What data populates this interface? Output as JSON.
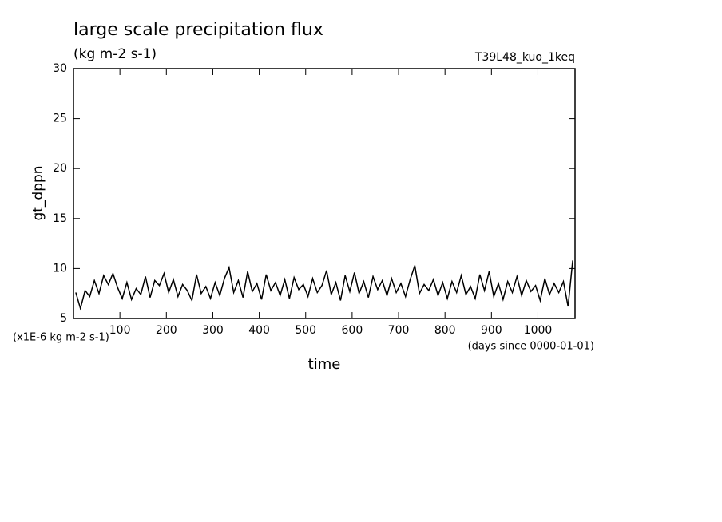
{
  "chart_data": {
    "type": "line",
    "title": "large scale precipitation flux",
    "subtitle": "(kg m-2 s-1)",
    "annotation_right": "T39L48_kuo_1keq",
    "y_label": "gt_dppn",
    "x_label": "time",
    "y_scale_note": "(x1E-6 kg m-2 s-1)",
    "x_unit_note": "(days since 0000-01-01)",
    "xlim": [
      0,
      1080
    ],
    "ylim": [
      5,
      30
    ],
    "xticks": [
      100,
      200,
      300,
      400,
      500,
      600,
      700,
      800,
      900,
      1000
    ],
    "yticks": [
      5,
      10,
      15,
      20,
      25,
      30
    ],
    "x": [
      5,
      15,
      25,
      35,
      45,
      55,
      65,
      75,
      85,
      95,
      105,
      115,
      125,
      135,
      145,
      155,
      165,
      175,
      185,
      195,
      205,
      215,
      225,
      235,
      245,
      255,
      265,
      275,
      285,
      295,
      305,
      315,
      325,
      335,
      345,
      355,
      365,
      375,
      385,
      395,
      405,
      415,
      425,
      435,
      445,
      455,
      465,
      475,
      485,
      495,
      505,
      515,
      525,
      535,
      545,
      555,
      565,
      575,
      585,
      595,
      605,
      615,
      625,
      635,
      645,
      655,
      665,
      675,
      685,
      695,
      705,
      715,
      725,
      735,
      745,
      755,
      765,
      775,
      785,
      795,
      805,
      815,
      825,
      835,
      845,
      855,
      865,
      875,
      885,
      895,
      905,
      915,
      925,
      935,
      945,
      955,
      965,
      975,
      985,
      995,
      1005,
      1015,
      1025,
      1035,
      1045,
      1055,
      1065,
      1075
    ],
    "series": [
      {
        "color": "#000000",
        "values": [
          7.6,
          6.0,
          7.8,
          7.2,
          8.8,
          7.5,
          9.3,
          8.4,
          9.5,
          8.1,
          7.0,
          8.6,
          6.9,
          8.0,
          7.4,
          9.2,
          7.1,
          8.8,
          8.3,
          9.5,
          7.6,
          8.9,
          7.2,
          8.4,
          7.8,
          6.8,
          9.4,
          7.5,
          8.2,
          7.0,
          8.6,
          7.3,
          9.0,
          10.1,
          7.6,
          8.8,
          7.1,
          9.7,
          7.7,
          8.5,
          6.9,
          9.4,
          7.8,
          8.6,
          7.3,
          8.9,
          7.0,
          9.1,
          7.9,
          8.4,
          7.2,
          9.0,
          7.6,
          8.3,
          9.8,
          7.4,
          8.6,
          6.8,
          9.3,
          7.7,
          9.6,
          7.5,
          8.7,
          7.1,
          9.2,
          7.9,
          8.8,
          7.3,
          9.0,
          7.6,
          8.5,
          7.2,
          8.9,
          10.3,
          7.5,
          8.4,
          7.8,
          8.9,
          7.3,
          8.6,
          7.0,
          8.7,
          7.6,
          9.3,
          7.4,
          8.2,
          7.0,
          9.4,
          7.8,
          9.7,
          7.2,
          8.5,
          6.9,
          8.7,
          7.6,
          9.2,
          7.3,
          8.8,
          7.7,
          8.3,
          6.8,
          9.0,
          7.4,
          8.5,
          7.6,
          8.7,
          6.2,
          10.8
        ]
      }
    ]
  }
}
